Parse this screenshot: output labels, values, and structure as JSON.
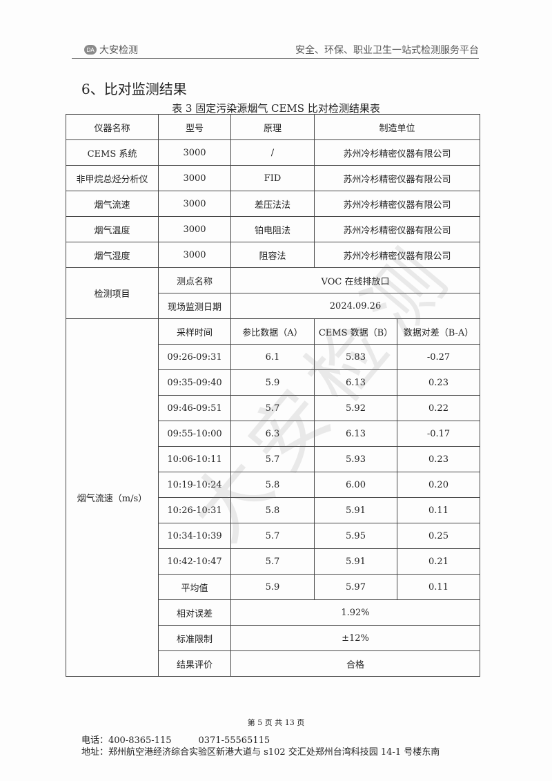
{
  "header": {
    "logo_text": "大安检测",
    "logo_mark": "DA",
    "slogan": "安全、环保、职业卫生一站式检测服务平台"
  },
  "section_title": "6、比对监测结果",
  "table_caption": "表 3  固定污染源烟气 CEMS 比对检测结果表",
  "instrument_headers": [
    "仪器名称",
    "型号",
    "原理",
    "制造单位"
  ],
  "instruments": [
    [
      "CEMS 系统",
      "3000",
      "/",
      "苏州冷杉精密仪器有限公司"
    ],
    [
      "非甲烷总烃分析仪",
      "3000",
      "FID",
      "苏州冷杉精密仪器有限公司"
    ],
    [
      "烟气流速",
      "3000",
      "差压法法",
      "苏州冷杉精密仪器有限公司"
    ],
    [
      "烟气温度",
      "3000",
      "铂电阻法",
      "苏州冷杉精密仪器有限公司"
    ],
    [
      "烟气湿度",
      "3000",
      "阻容法",
      "苏州冷杉精密仪器有限公司"
    ]
  ],
  "item": {
    "label": "检测项目",
    "point_label": "测点名称",
    "point_value": "VOC 在线排放口",
    "date_label": "现场监测日期",
    "date_value": "2024.09.26"
  },
  "data_param": "烟气流速（m/s）",
  "data_headers": [
    "采样时间",
    "参比数据（A）",
    "CEMS 数据（B）",
    "数据对差（B-A）"
  ],
  "data_rows": [
    [
      "09:26-09:31",
      "6.1",
      "5.83",
      "-0.27"
    ],
    [
      "09:35-09:40",
      "5.9",
      "6.13",
      "0.23"
    ],
    [
      "09:46-09:51",
      "5.7",
      "5.92",
      "0.22"
    ],
    [
      "09:55-10:00",
      "6.3",
      "6.13",
      "-0.17"
    ],
    [
      "10:06-10:11",
      "5.7",
      "5.93",
      "0.23"
    ],
    [
      "10:19-10:24",
      "5.8",
      "6.00",
      "0.20"
    ],
    [
      "10:26-10:31",
      "5.8",
      "5.91",
      "0.11"
    ],
    [
      "10:34-10:39",
      "5.7",
      "5.95",
      "0.25"
    ],
    [
      "10:42-10:47",
      "5.7",
      "5.91",
      "0.21"
    ],
    [
      "平均值",
      "5.9",
      "5.97",
      "0.11"
    ]
  ],
  "summary": [
    [
      "相对误差",
      "1.92%"
    ],
    [
      "标准限制",
      "±12%"
    ],
    [
      "结果评价",
      "合格"
    ]
  ],
  "watermark": "大安检测",
  "footer": {
    "page": "第 5 页 共 13 页",
    "phone": "电话：400-8365-115　　　0371-55565115",
    "address": "地址：郑州航空港经济综合实验区新港大道与 s102 交汇处郑州台湾科技园 14-1 号楼东南"
  }
}
